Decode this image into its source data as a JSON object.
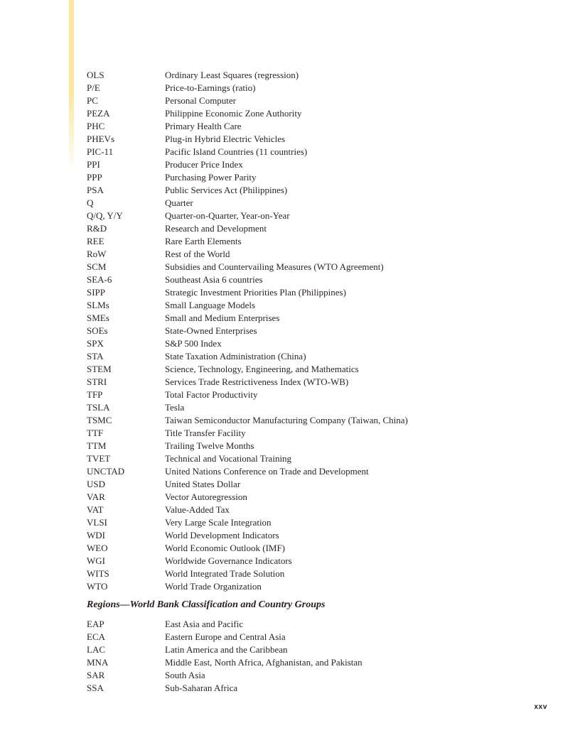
{
  "colors": {
    "accent_bar": "#F9E79B",
    "text": "#2A2523",
    "background": "#FFFFFF"
  },
  "abbreviations": [
    {
      "abbr": "OLS",
      "definition": "Ordinary Least Squares (regression)"
    },
    {
      "abbr": "P/E",
      "definition": "Price-to-Earnings (ratio)"
    },
    {
      "abbr": "PC",
      "definition": "Personal Computer"
    },
    {
      "abbr": "PEZA",
      "definition": "Philippine Economic Zone Authority"
    },
    {
      "abbr": "PHC",
      "definition": "Primary Health Care"
    },
    {
      "abbr": "PHEVs",
      "definition": "Plug-in Hybrid Electric Vehicles"
    },
    {
      "abbr": "PIC-11",
      "definition": "Pacific Island Countries (11 countries)"
    },
    {
      "abbr": "PPI",
      "definition": "Producer Price Index"
    },
    {
      "abbr": "PPP",
      "definition": "Purchasing Power Parity"
    },
    {
      "abbr": "PSA",
      "definition": "Public Services Act (Philippines)"
    },
    {
      "abbr": "Q",
      "definition": "Quarter"
    },
    {
      "abbr": "Q/Q, Y/Y",
      "definition": "Quarter-on-Quarter, Year-on-Year"
    },
    {
      "abbr": "R&D",
      "definition": "Research and Development"
    },
    {
      "abbr": "REE",
      "definition": "Rare Earth Elements"
    },
    {
      "abbr": "RoW",
      "definition": "Rest of the World"
    },
    {
      "abbr": "SCM",
      "definition": "Subsidies and Countervailing Measures (WTO Agreement)"
    },
    {
      "abbr": "SEA-6",
      "definition": "Southeast Asia 6 countries"
    },
    {
      "abbr": "SIPP",
      "definition": "Strategic Investment Priorities Plan (Philippines)"
    },
    {
      "abbr": "SLMs",
      "definition": "Small Language Models"
    },
    {
      "abbr": "SMEs",
      "definition": "Small and Medium Enterprises"
    },
    {
      "abbr": "SOEs",
      "definition": "State-Owned Enterprises"
    },
    {
      "abbr": "SPX",
      "definition": "S&P 500 Index"
    },
    {
      "abbr": "STA",
      "definition": "State Taxation Administration (China)"
    },
    {
      "abbr": "STEM",
      "definition": "Science, Technology, Engineering, and Mathematics"
    },
    {
      "abbr": "STRI",
      "definition": "Services Trade Restrictiveness Index (WTO-WB)"
    },
    {
      "abbr": "TFP",
      "definition": "Total Factor Productivity"
    },
    {
      "abbr": "TSLA",
      "definition": "Tesla"
    },
    {
      "abbr": "TSMC",
      "definition": "Taiwan Semiconductor Manufacturing Company (Taiwan, China)"
    },
    {
      "abbr": "TTF",
      "definition": "Title Transfer Facility"
    },
    {
      "abbr": "TTM",
      "definition": "Trailing Twelve Months"
    },
    {
      "abbr": "TVET",
      "definition": "Technical and Vocational Training"
    },
    {
      "abbr": "UNCTAD",
      "definition": "United Nations Conference on Trade and Development"
    },
    {
      "abbr": "USD",
      "definition": "United States Dollar"
    },
    {
      "abbr": "VAR",
      "definition": "Vector Autoregression"
    },
    {
      "abbr": "VAT",
      "definition": "Value-Added Tax"
    },
    {
      "abbr": "VLSI",
      "definition": "Very Large Scale Integration"
    },
    {
      "abbr": "WDI",
      "definition": "World Development Indicators"
    },
    {
      "abbr": "WEO",
      "definition": "World Economic Outlook (IMF)"
    },
    {
      "abbr": "WGI",
      "definition": "Worldwide Governance Indicators"
    },
    {
      "abbr": "WITS",
      "definition": "World Integrated Trade Solution"
    },
    {
      "abbr": "WTO",
      "definition": "World Trade Organization"
    }
  ],
  "section_heading": "Regions—World Bank Classification and Country Groups",
  "regions": [
    {
      "abbr": "EAP",
      "definition": "East Asia and Pacific"
    },
    {
      "abbr": "ECA",
      "definition": "Eastern Europe and Central Asia"
    },
    {
      "abbr": "LAC",
      "definition": "Latin America and the Caribbean"
    },
    {
      "abbr": "MNA",
      "definition": "Middle East, North Africa, Afghanistan, and Pakistan"
    },
    {
      "abbr": "SAR",
      "definition": "South Asia"
    },
    {
      "abbr": "SSA",
      "definition": "Sub-Saharan Africa"
    }
  ],
  "page_number": "xxv"
}
